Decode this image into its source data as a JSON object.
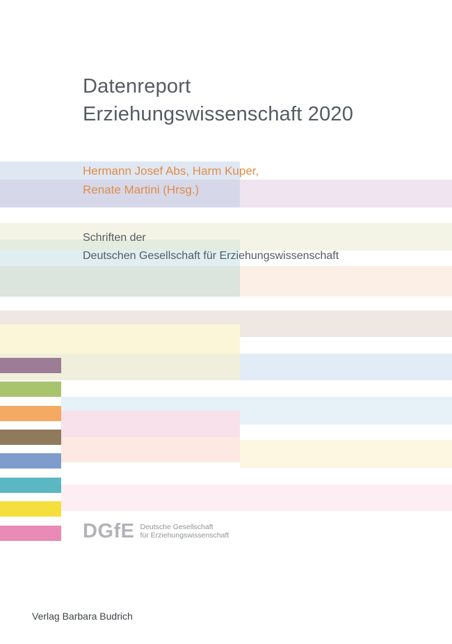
{
  "title": {
    "line1": "Datenreport",
    "line2": "Erziehungswissenschaft 2020"
  },
  "editors": {
    "line1": "Hermann Josef Abs, Harm Kuper,",
    "line2": "Renate Martini (Hrsg.)"
  },
  "series": {
    "line1": "Schriften der",
    "line2": "Deutschen Gesellschaft für Erziehungswissenschaft"
  },
  "logo": {
    "mark": "DGfE",
    "line1": "Deutsche Gesellschaft",
    "line2": "für Erziehungswissenschaft"
  },
  "publisher": "Verlag Barbara Budrich",
  "colors": {
    "swatch_purple": "#9c7c97",
    "swatch_green": "#a9c46f",
    "swatch_orange": "#f5aa63",
    "swatch_brown": "#8f7a5c",
    "swatch_blue": "#7f9dcc",
    "swatch_teal": "#5bb7c2",
    "swatch_yellow": "#f5df3c",
    "swatch_pink": "#e98bb6"
  }
}
